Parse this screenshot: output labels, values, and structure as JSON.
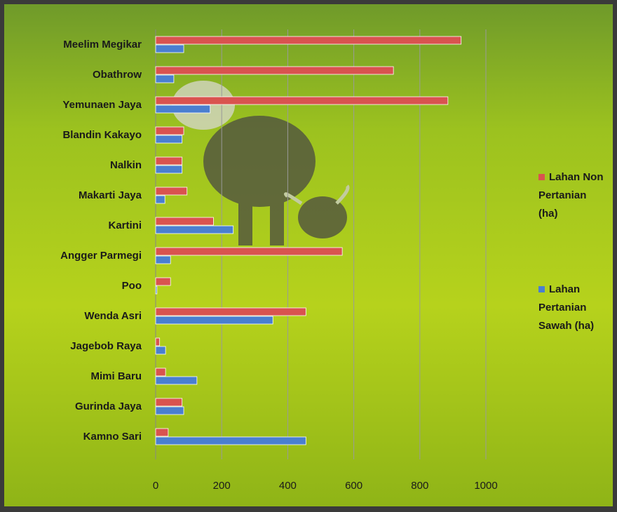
{
  "chart_data": {
    "type": "barh",
    "categories": [
      "Meelim Megikar",
      "Obathrow",
      "Yemunaen Jaya",
      "Blandin Kakayo",
      "Nalkin",
      "Makarti Jaya",
      "Kartini",
      "Angger Parmegi",
      "Poo",
      "Wenda Asri",
      "Jagebob Raya",
      "Mimi Baru",
      "Gurinda Jaya",
      "Kamno Sari"
    ],
    "series": [
      {
        "name": "Lahan Non Pertanian (ha)",
        "color": "#d9534f",
        "values": [
          925,
          720,
          885,
          85,
          80,
          95,
          175,
          565,
          45,
          455,
          12,
          30,
          80,
          38
        ]
      },
      {
        "name": "Lahan Pertanian Sawah (ha)",
        "color": "#4a7fd0",
        "values": [
          85,
          55,
          165,
          80,
          80,
          28,
          235,
          45,
          4,
          355,
          30,
          125,
          85,
          455
        ]
      }
    ],
    "xlim": [
      0,
      1000
    ],
    "xticks": [
      0,
      200,
      400,
      600,
      800,
      1000
    ],
    "grid": true,
    "legend": "right"
  }
}
